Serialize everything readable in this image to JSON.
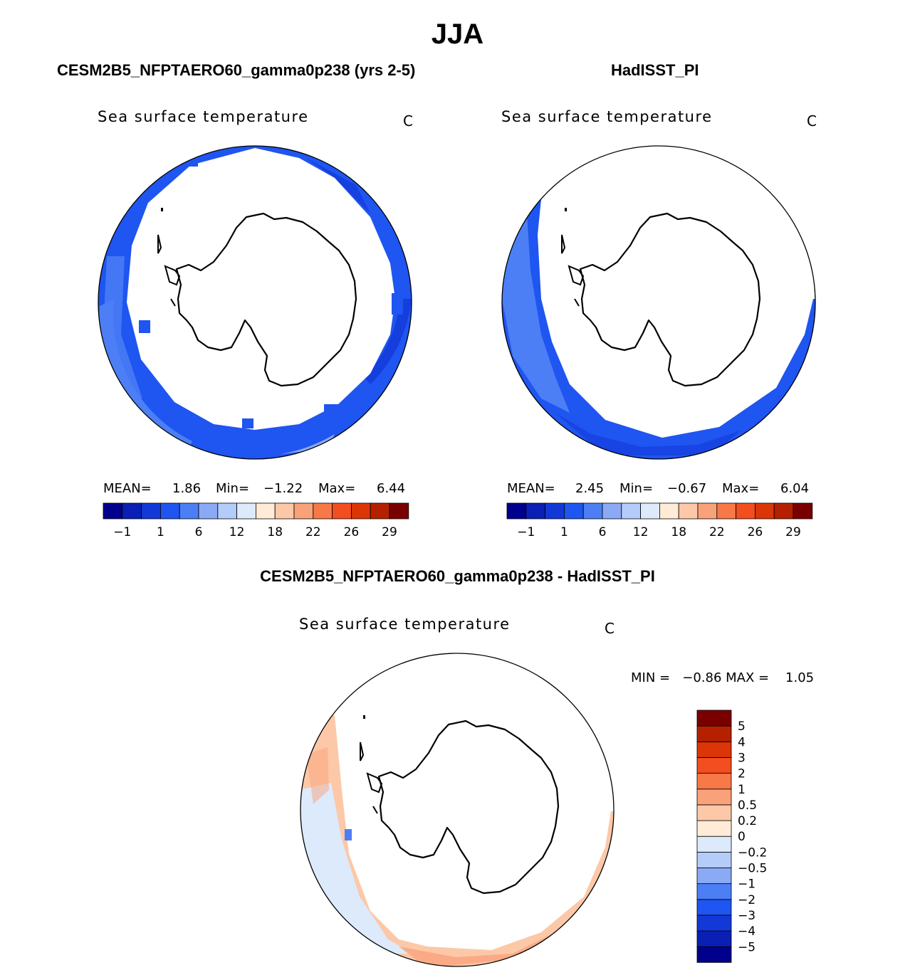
{
  "page": {
    "season": "JJA",
    "diff_title": "CESM2B5_NFPTAERO60_gamma0p238 - HadISST_PI"
  },
  "panels": [
    {
      "case_title": "CESM2B5_NFPTAERO60_gamma0p238 (yrs 2-5)",
      "variable": "Sea surface temperature",
      "units": "C",
      "mean_label": "MEAN=",
      "mean": "1.86",
      "min_label": "Min=",
      "min": "−1.22",
      "max_label": "Max=",
      "max": "6.44"
    },
    {
      "case_title": "HadISST_PI",
      "variable": "Sea surface temperature",
      "units": "C",
      "mean_label": "MEAN=",
      "mean": "2.45",
      "min_label": "Min=",
      "min": "−0.67",
      "max_label": "Max=",
      "max": "6.04"
    }
  ],
  "diff_panel": {
    "variable": "Sea surface temperature",
    "units": "C",
    "minmax_text": "MIN =   −0.86 MAX =    1.05"
  },
  "colorbar_abs": {
    "colors": [
      "#00008c",
      "#0a1fb4",
      "#1238d8",
      "#1f55f0",
      "#4c7ff5",
      "#8aaaf5",
      "#b4ccfa",
      "#dceafc",
      "#ffebd6",
      "#fcc8a8",
      "#f9a27a",
      "#f87848",
      "#f24e1f",
      "#db3508",
      "#b52000",
      "#7a0000"
    ],
    "tick_labels": [
      "−1",
      "1",
      "6",
      "12",
      "18",
      "22",
      "26",
      "29"
    ]
  },
  "colorbar_diff": {
    "colors_bottom_to_top": [
      "#00008c",
      "#0a1fb4",
      "#1238d8",
      "#1f55f0",
      "#4c7ff5",
      "#8aaaf5",
      "#b4ccfa",
      "#dceafc",
      "#ffebd6",
      "#fcc8a8",
      "#f9a27a",
      "#f87848",
      "#f24e1f",
      "#db3508",
      "#b52000",
      "#7a0000"
    ],
    "tick_labels_top_to_bottom": [
      "5",
      "4",
      "3",
      "2",
      "1",
      "0.5",
      "0.2",
      "0",
      "−0.2",
      "−0.5",
      "−1",
      "−2",
      "−3",
      "−4",
      "−5"
    ]
  },
  "map_colors": {
    "deep_blue": "#1238d8",
    "mid_blue": "#1f55f0",
    "light_blue": "#4c7ff5",
    "pale_blue": "#8aaaf5",
    "diff_peach": "#fcc8a8",
    "diff_orange": "#f9a27a",
    "diff_light": "#dceafc",
    "diff_cream": "#ffebd6"
  }
}
